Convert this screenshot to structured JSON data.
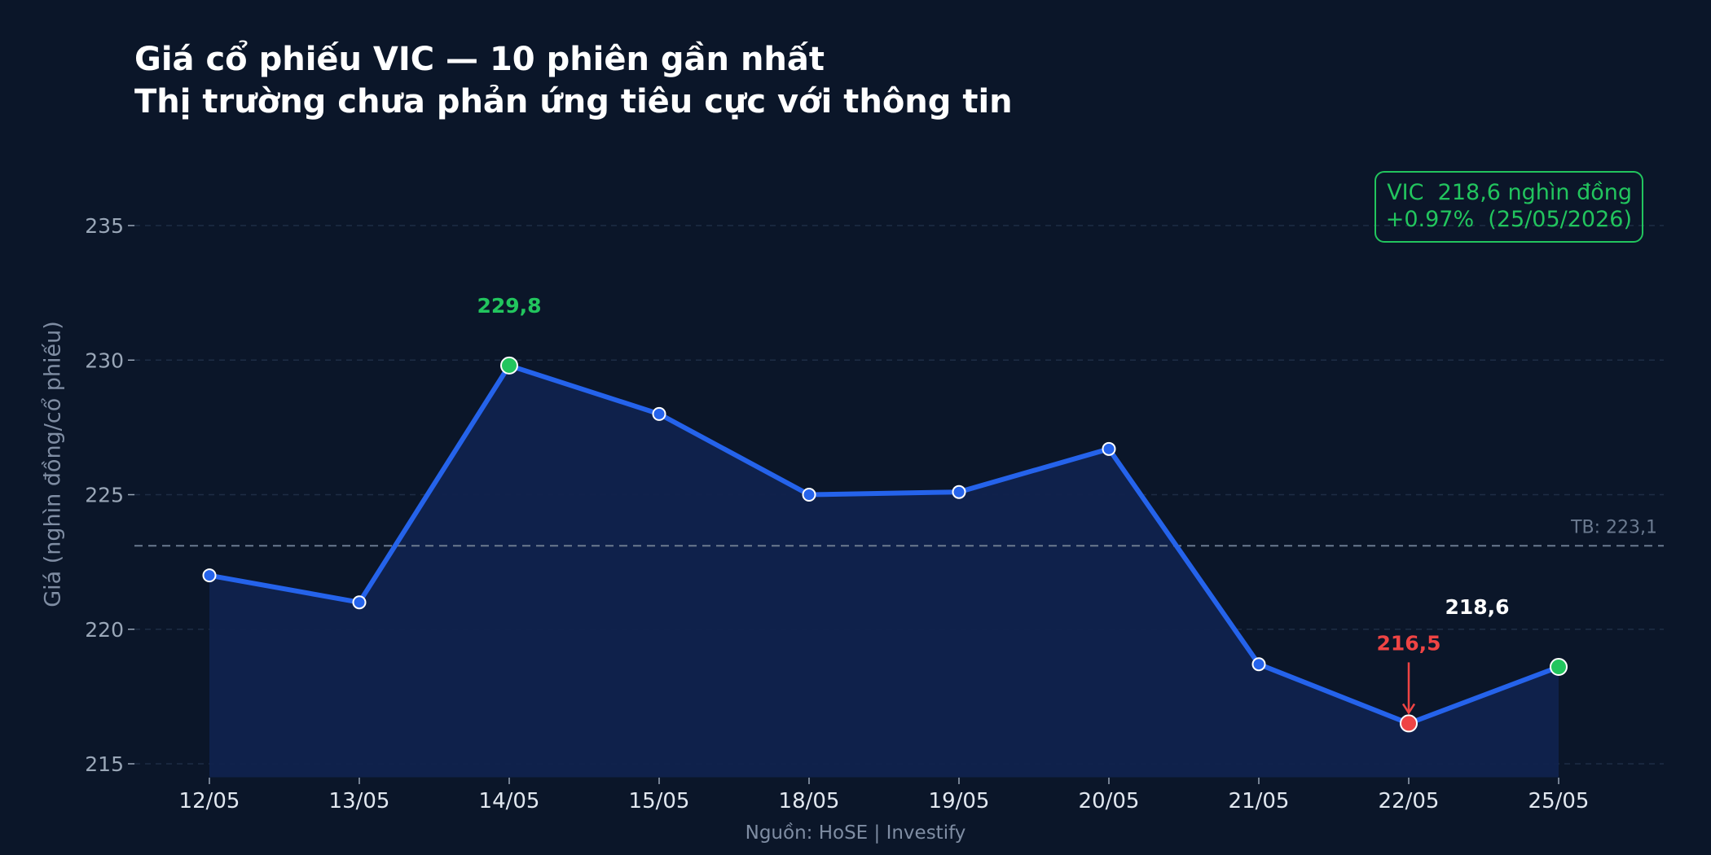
{
  "title_line1": "Giá cổ phiếu VIC — 10 phiên gần nhất",
  "title_line2": "Thị trường chưa phản ứng tiêu cực với thông tin",
  "info_box": {
    "line1": "VIC  218,6 nghìn đồng",
    "line2": "+0.97%  (25/05/2026)"
  },
  "source": "Nguồn: HoSE  |  Investify",
  "colors": {
    "background": "#0b1629",
    "line": "#2563eb",
    "area": "#10224d",
    "high": "#22c55e",
    "low": "#ef4444",
    "grid": "#1e2d45",
    "average_line": "#6b7a90",
    "axis_text": "#9aa7b8"
  },
  "chart_data": {
    "type": "line",
    "title": "Giá cổ phiếu VIC — 10 phiên gần nhất",
    "subtitle": "Thị trường chưa phản ứng tiêu cực với thông tin",
    "xlabel": "",
    "ylabel": "Giá (nghìn đồng/cổ phiếu)",
    "categories": [
      "12/05",
      "13/05",
      "14/05",
      "15/05",
      "18/05",
      "19/05",
      "20/05",
      "21/05",
      "22/05",
      "25/05"
    ],
    "series": [
      {
        "values": [
          222.0,
          221.0,
          229.8,
          228.0,
          225.0,
          225.1,
          226.7,
          218.7,
          216.5,
          218.6
        ]
      }
    ],
    "yticks": [
      215,
      220,
      225,
      230,
      235
    ],
    "ylim": [
      214.5,
      237.5
    ],
    "grid": true,
    "average": {
      "value": 223.1,
      "label": "TB: 223,1"
    },
    "annotations": [
      {
        "index": 2,
        "text": "229,8",
        "kind": "high"
      },
      {
        "index": 8,
        "text": "216,5",
        "kind": "low"
      },
      {
        "index": 9,
        "text": "218,6",
        "kind": "last"
      }
    ]
  }
}
